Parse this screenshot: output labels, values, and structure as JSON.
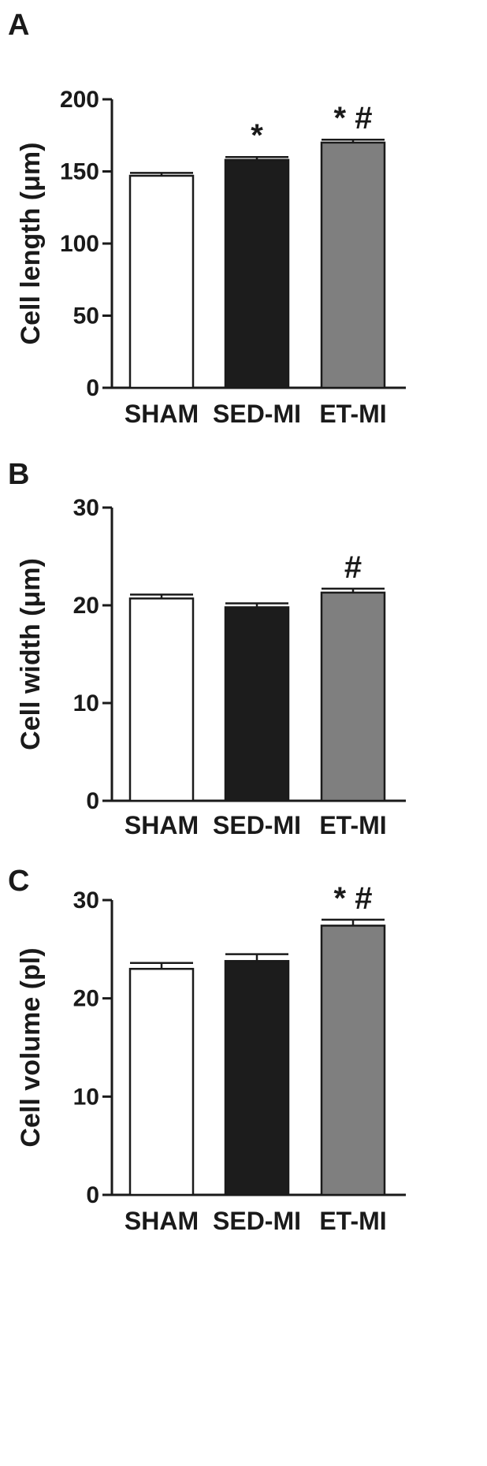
{
  "chart_data": [
    {
      "type": "bar",
      "panel_label": "A",
      "ylabel": "Cell length (μm)",
      "categories": [
        "SHAM",
        "SED-MI",
        "ET-MI"
      ],
      "values": [
        147,
        158,
        170
      ],
      "errors": [
        2,
        2,
        2
      ],
      "bar_colors": [
        "#ffffff",
        "#1c1c1c",
        "#7f7f7f"
      ],
      "annotations": [
        "",
        "*",
        "* #"
      ],
      "ylim": [
        0,
        200
      ],
      "yticks": [
        "0",
        "50",
        "100",
        "150",
        "200"
      ],
      "grid": false
    },
    {
      "type": "bar",
      "panel_label": "B",
      "ylabel": "Cell width (μm)",
      "categories": [
        "SHAM",
        "SED-MI",
        "ET-MI"
      ],
      "values": [
        20.7,
        19.8,
        21.3
      ],
      "errors": [
        0.4,
        0.4,
        0.4
      ],
      "bar_colors": [
        "#ffffff",
        "#1c1c1c",
        "#7f7f7f"
      ],
      "annotations": [
        "",
        "",
        "#"
      ],
      "ylim": [
        0,
        30
      ],
      "yticks": [
        "0",
        "10",
        "20",
        "30"
      ],
      "grid": false
    },
    {
      "type": "bar",
      "panel_label": "C",
      "ylabel": "Cell volume (pl)",
      "categories": [
        "SHAM",
        "SED-MI",
        "ET-MI"
      ],
      "values": [
        23.0,
        23.8,
        27.4
      ],
      "errors": [
        0.6,
        0.7,
        0.6
      ],
      "bar_colors": [
        "#ffffff",
        "#1c1c1c",
        "#7f7f7f"
      ],
      "annotations": [
        "",
        "",
        "* #"
      ],
      "ylim": [
        0,
        30
      ],
      "yticks": [
        "0",
        "10",
        "20",
        "30"
      ],
      "grid": false
    }
  ]
}
